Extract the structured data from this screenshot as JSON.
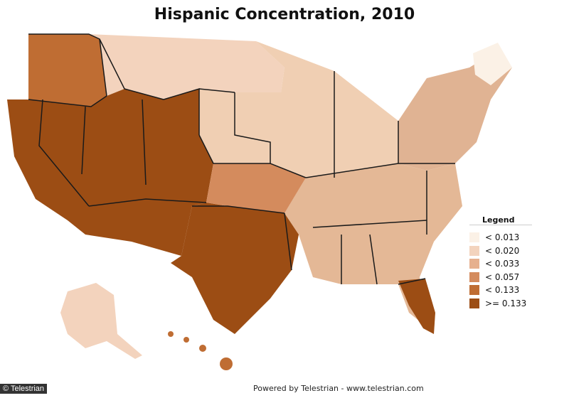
{
  "title": "Hispanic Concentration, 2010",
  "legend": {
    "title": "Legend",
    "items": [
      {
        "label": "< 0.013",
        "color": "#fbf1e6"
      },
      {
        "label": "< 0.020",
        "color": "#f3d3bd"
      },
      {
        "label": "< 0.033",
        "color": "#e6b08e"
      },
      {
        "label": "< 0.057",
        "color": "#d48b5d"
      },
      {
        "label": "< 0.133",
        "color": "#bf6d33"
      },
      {
        "label": ">= 0.133",
        "color": "#9c4d14"
      }
    ]
  },
  "footer": "Powered by Telestrian - www.telestrian.com",
  "credit": "© Telestrian",
  "colors": {
    "state_border": "#1a1a1a",
    "background": "#ffffff"
  }
}
